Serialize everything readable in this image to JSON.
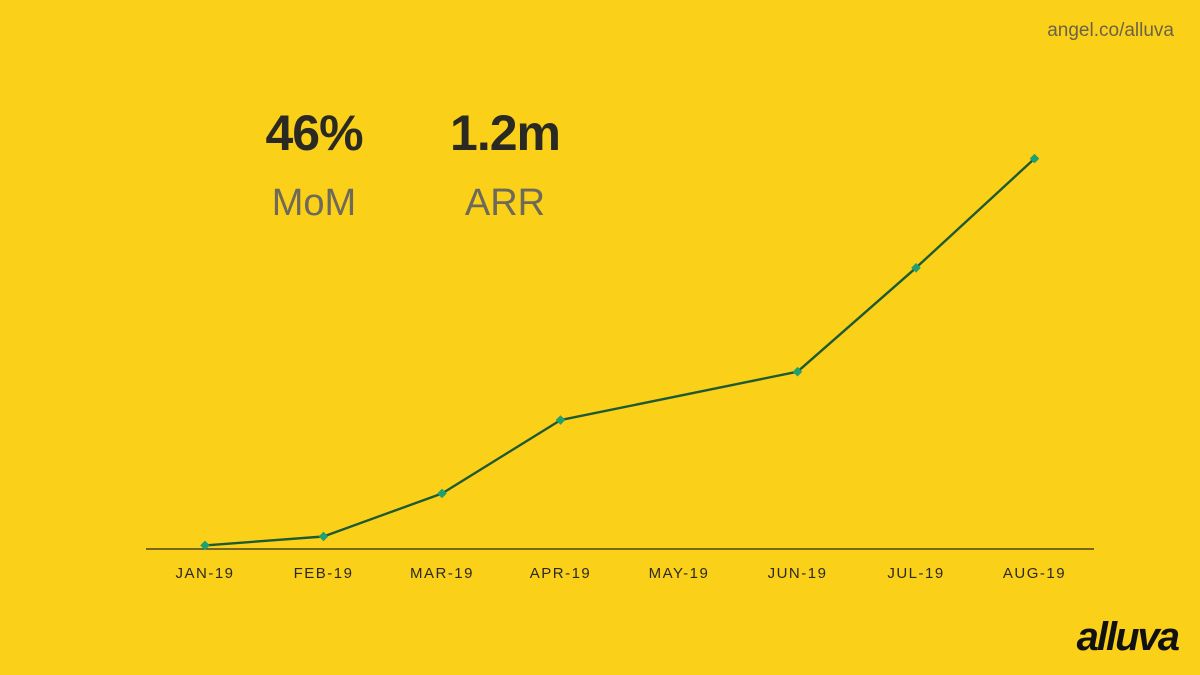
{
  "header": {
    "url": "angel.co/alluva"
  },
  "kpis": [
    {
      "value": "46%",
      "label": "MoM"
    },
    {
      "value": "1.2m",
      "label": "ARR"
    }
  ],
  "brand": {
    "logo_text": "alluva"
  },
  "colors": {
    "background": "#fbd019",
    "line": "#1e5a32",
    "marker": "#1fa070",
    "axis": "#2b2a22"
  },
  "chart_data": {
    "type": "line",
    "categories": [
      "JAN-19",
      "FEB-19",
      "MAR-19",
      "APR-19",
      "MAY-19",
      "JUN-19",
      "JUL-19",
      "AUG-19"
    ],
    "series": [
      {
        "values": [
          1,
          3.5,
          15.5,
          36,
          null,
          49.5,
          78.5,
          109
        ],
        "markers": "diamond"
      }
    ],
    "ylim": [
      0,
      110
    ],
    "y_axis_visible": false,
    "grid": false,
    "legend": "none"
  }
}
